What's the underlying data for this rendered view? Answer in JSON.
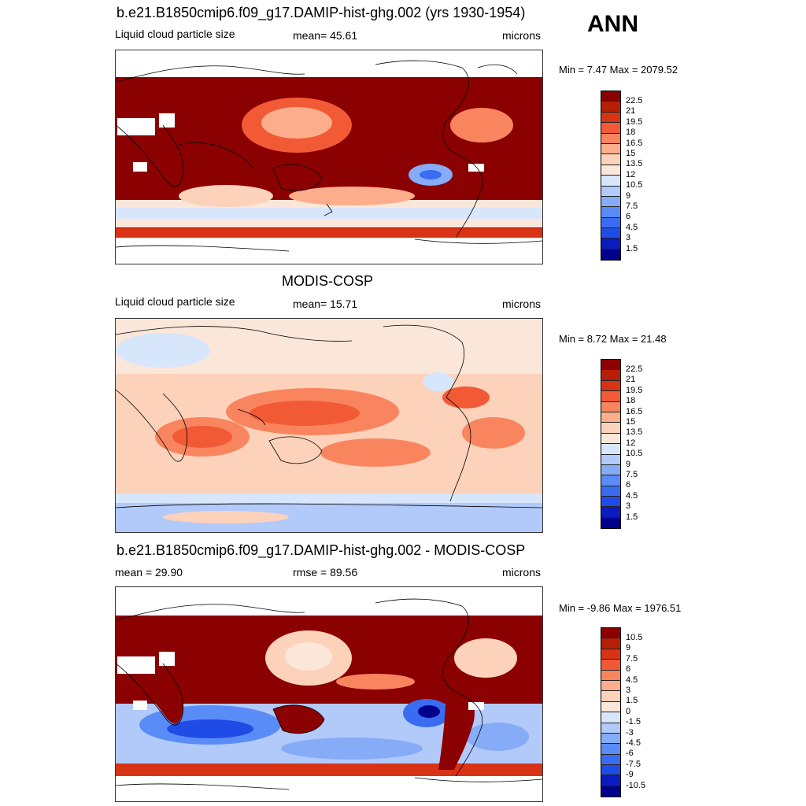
{
  "season": "ANN",
  "panels": [
    {
      "title": "b.e21.B1850cmip6.f09_g17.DAMIP-hist-ghg.002 (yrs 1930-1954)",
      "left_label": "Liquid cloud particle size",
      "center_label": "mean=  45.61",
      "units": "microns",
      "minmax": "Min =   7.47 Max = 2079.52",
      "levels": [
        "22.5",
        "21",
        "19.5",
        "18",
        "16.5",
        "15",
        "13.5",
        "12",
        "10.5",
        "9",
        "7.5",
        "6",
        "4.5",
        "3",
        "1.5"
      ]
    },
    {
      "title": "MODIS-COSP",
      "left_label": "Liquid cloud particle size",
      "center_label": "mean=  15.71",
      "units": "microns",
      "minmax": "Min =   8.72 Max =  21.48",
      "levels": [
        "22.5",
        "21",
        "19.5",
        "18",
        "16.5",
        "15",
        "13.5",
        "12",
        "10.5",
        "9",
        "7.5",
        "6",
        "4.5",
        "3",
        "1.5"
      ]
    },
    {
      "title": "b.e21.B1850cmip6.f09_g17.DAMIP-hist-ghg.002 - MODIS-COSP",
      "left_label": "mean =  29.90",
      "center_label": "rmse =  89.56",
      "units": "microns",
      "minmax": "Min =  -9.86 Max = 1976.51",
      "levels": [
        "10.5",
        "9",
        "7.5",
        "6",
        "4.5",
        "3",
        "1.5",
        "0",
        "-1.5",
        "-3",
        "-4.5",
        "-6",
        "-7.5",
        "-9",
        "-10.5"
      ]
    }
  ],
  "chart_data": [
    {
      "type": "heatmap",
      "title": "b.e21.B1850cmip6.f09_g17.DAMIP-hist-ghg.002 (yrs 1930-1954)",
      "variable": "Liquid cloud particle size",
      "units": "microns",
      "mean": 45.61,
      "min": 7.47,
      "max": 2079.52,
      "contour_levels": [
        1.5,
        3,
        4.5,
        6,
        7.5,
        9,
        10.5,
        12,
        13.5,
        15,
        16.5,
        18,
        19.5,
        21,
        22.5
      ],
      "colors": [
        "#00008c",
        "#0b1bbf",
        "#1f4ce6",
        "#3a6cf2",
        "#5a8cf8",
        "#86acf8",
        "#b2cafa",
        "#d8e6fb",
        "#fbe7da",
        "#fcd2bb",
        "#fcae8c",
        "#f9855f",
        "#f25a36",
        "#d93315",
        "#b61e06",
        "#8b0000"
      ]
    },
    {
      "type": "heatmap",
      "title": "MODIS-COSP",
      "variable": "Liquid cloud particle size",
      "units": "microns",
      "mean": 15.71,
      "min": 8.72,
      "max": 21.48,
      "contour_levels": [
        1.5,
        3,
        4.5,
        6,
        7.5,
        9,
        10.5,
        12,
        13.5,
        15,
        16.5,
        18,
        19.5,
        21,
        22.5
      ],
      "colors": [
        "#00008c",
        "#0b1bbf",
        "#1f4ce6",
        "#3a6cf2",
        "#5a8cf8",
        "#86acf8",
        "#b2cafa",
        "#d8e6fb",
        "#fbe7da",
        "#fcd2bb",
        "#fcae8c",
        "#f9855f",
        "#f25a36",
        "#d93315",
        "#b61e06",
        "#8b0000"
      ]
    },
    {
      "type": "heatmap",
      "title": "b.e21.B1850cmip6.f09_g17.DAMIP-hist-ghg.002 - MODIS-COSP",
      "variable": "Liquid cloud particle size difference",
      "units": "microns",
      "mean": 29.9,
      "rmse": 89.56,
      "min": -9.86,
      "max": 1976.51,
      "contour_levels": [
        -10.5,
        -9,
        -7.5,
        -6,
        -4.5,
        -3,
        -1.5,
        0,
        1.5,
        3,
        4.5,
        6,
        7.5,
        9,
        10.5
      ],
      "colors": [
        "#00008c",
        "#0b1bbf",
        "#1f4ce6",
        "#3a6cf2",
        "#5a8cf8",
        "#86acf8",
        "#b2cafa",
        "#d8e6fb",
        "#fbe7da",
        "#fcd2bb",
        "#fcae8c",
        "#f9855f",
        "#f25a36",
        "#d93315",
        "#b61e06",
        "#8b0000"
      ]
    }
  ]
}
